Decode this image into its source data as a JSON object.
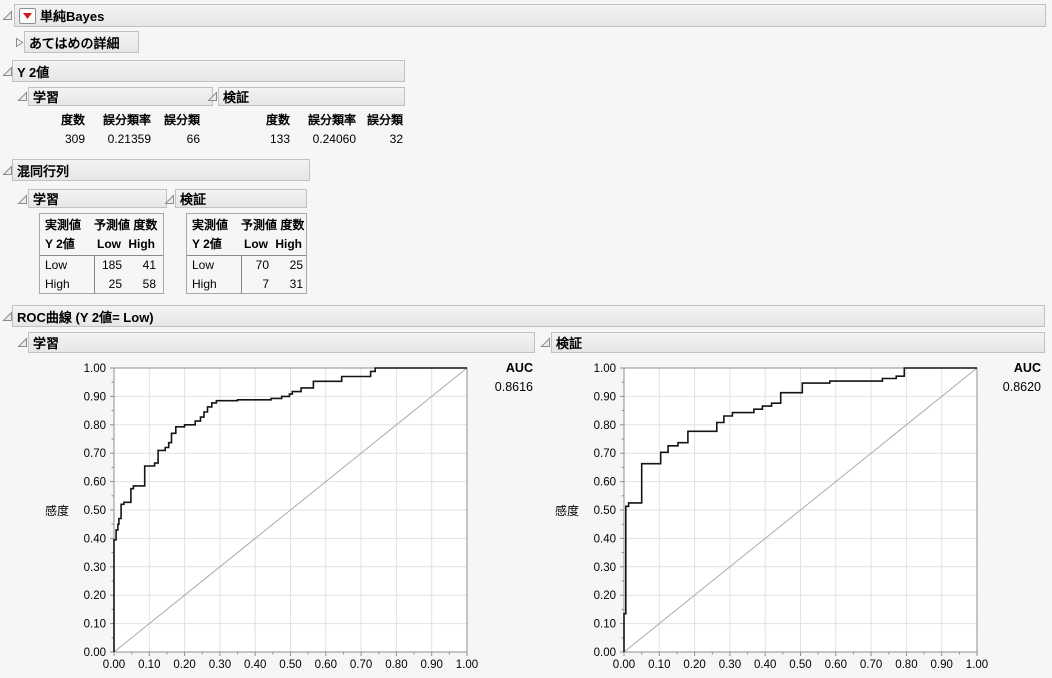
{
  "title": {
    "label": "単純Bayes"
  },
  "fit_details": {
    "label": "あてはめの詳細"
  },
  "y2": {
    "title": "Y 2値",
    "panels": [
      {
        "label": "学習",
        "columns": [
          "度数",
          "誤分類率",
          "誤分類"
        ],
        "values": [
          "309",
          "0.21359",
          "66"
        ]
      },
      {
        "label": "検証",
        "columns": [
          "度数",
          "誤分類率",
          "誤分類"
        ],
        "values": [
          "133",
          "0.24060",
          "32"
        ]
      }
    ]
  },
  "confusion": {
    "title": "混同行列",
    "panels": [
      {
        "label": "学習",
        "actual_header": "実測値",
        "predicted_header": "予測値 度数",
        "row_header": "Y 2値",
        "class_labels": [
          "Low",
          "High"
        ],
        "rows": [
          [
            "Low",
            "185",
            "41"
          ],
          [
            "High",
            "25",
            "58"
          ]
        ]
      },
      {
        "label": "検証",
        "actual_header": "実測値",
        "predicted_header": "予測値 度数",
        "row_header": "Y 2値",
        "class_labels": [
          "Low",
          "High"
        ],
        "rows": [
          [
            "Low",
            "70",
            "25"
          ],
          [
            "High",
            "7",
            "31"
          ]
        ]
      }
    ]
  },
  "roc": {
    "title": "ROC曲線 (Y 2値= Low)",
    "ylabel": "感度",
    "auc_label": "AUC",
    "panels": [
      {
        "label": "学習",
        "auc": "0.8616"
      },
      {
        "label": "検証",
        "auc": "0.8620"
      }
    ]
  },
  "chart_data": [
    {
      "type": "line",
      "title": "学習 ROC曲線 (Y 2値= Low)",
      "xlabel": "",
      "ylabel": "感度",
      "xlim": [
        0,
        1
      ],
      "ylim": [
        0,
        1
      ],
      "tick_step": 0.1,
      "grid": true,
      "diagonal": true,
      "auc": 0.8616,
      "curve": [
        [
          0,
          0
        ],
        [
          0,
          0.395
        ],
        [
          0.006,
          0.395
        ],
        [
          0.006,
          0.43
        ],
        [
          0.011,
          0.43
        ],
        [
          0.011,
          0.45
        ],
        [
          0.014,
          0.45
        ],
        [
          0.014,
          0.47
        ],
        [
          0.02,
          0.47
        ],
        [
          0.02,
          0.52
        ],
        [
          0.028,
          0.52
        ],
        [
          0.028,
          0.527
        ],
        [
          0.048,
          0.527
        ],
        [
          0.048,
          0.575
        ],
        [
          0.055,
          0.575
        ],
        [
          0.055,
          0.585
        ],
        [
          0.087,
          0.585
        ],
        [
          0.087,
          0.655
        ],
        [
          0.115,
          0.655
        ],
        [
          0.115,
          0.665
        ],
        [
          0.125,
          0.665
        ],
        [
          0.125,
          0.71
        ],
        [
          0.145,
          0.71
        ],
        [
          0.145,
          0.72
        ],
        [
          0.155,
          0.72
        ],
        [
          0.155,
          0.737
        ],
        [
          0.163,
          0.737
        ],
        [
          0.163,
          0.77
        ],
        [
          0.175,
          0.77
        ],
        [
          0.175,
          0.793
        ],
        [
          0.2,
          0.793
        ],
        [
          0.2,
          0.8
        ],
        [
          0.23,
          0.8
        ],
        [
          0.23,
          0.813
        ],
        [
          0.245,
          0.813
        ],
        [
          0.245,
          0.827
        ],
        [
          0.255,
          0.827
        ],
        [
          0.255,
          0.845
        ],
        [
          0.265,
          0.845
        ],
        [
          0.265,
          0.863
        ],
        [
          0.277,
          0.863
        ],
        [
          0.277,
          0.877
        ],
        [
          0.29,
          0.877
        ],
        [
          0.29,
          0.885
        ],
        [
          0.35,
          0.885
        ],
        [
          0.35,
          0.888
        ],
        [
          0.445,
          0.888
        ],
        [
          0.445,
          0.893
        ],
        [
          0.475,
          0.893
        ],
        [
          0.475,
          0.9
        ],
        [
          0.497,
          0.9
        ],
        [
          0.497,
          0.908
        ],
        [
          0.505,
          0.908
        ],
        [
          0.505,
          0.917
        ],
        [
          0.53,
          0.917
        ],
        [
          0.53,
          0.93
        ],
        [
          0.565,
          0.93
        ],
        [
          0.565,
          0.953
        ],
        [
          0.645,
          0.953
        ],
        [
          0.645,
          0.97
        ],
        [
          0.727,
          0.97
        ],
        [
          0.727,
          0.988
        ],
        [
          0.74,
          0.988
        ],
        [
          0.74,
          1
        ],
        [
          1,
          1
        ]
      ]
    },
    {
      "type": "line",
      "title": "検証 ROC曲線 (Y 2値= Low)",
      "xlabel": "",
      "ylabel": "感度",
      "xlim": [
        0,
        1
      ],
      "ylim": [
        0,
        1
      ],
      "tick_step": 0.1,
      "grid": true,
      "diagonal": true,
      "auc": 0.862,
      "curve": [
        [
          0,
          0
        ],
        [
          0,
          0.135
        ],
        [
          0.005,
          0.135
        ],
        [
          0.005,
          0.513
        ],
        [
          0.013,
          0.513
        ],
        [
          0.013,
          0.525
        ],
        [
          0.05,
          0.525
        ],
        [
          0.05,
          0.663
        ],
        [
          0.104,
          0.663
        ],
        [
          0.104,
          0.703
        ],
        [
          0.125,
          0.703
        ],
        [
          0.125,
          0.726
        ],
        [
          0.153,
          0.726
        ],
        [
          0.153,
          0.737
        ],
        [
          0.181,
          0.737
        ],
        [
          0.181,
          0.777
        ],
        [
          0.263,
          0.777
        ],
        [
          0.263,
          0.808
        ],
        [
          0.283,
          0.808
        ],
        [
          0.283,
          0.831
        ],
        [
          0.307,
          0.831
        ],
        [
          0.307,
          0.843
        ],
        [
          0.368,
          0.843
        ],
        [
          0.368,
          0.855
        ],
        [
          0.392,
          0.855
        ],
        [
          0.392,
          0.866
        ],
        [
          0.418,
          0.866
        ],
        [
          0.418,
          0.876
        ],
        [
          0.444,
          0.876
        ],
        [
          0.444,
          0.913
        ],
        [
          0.505,
          0.913
        ],
        [
          0.505,
          0.947
        ],
        [
          0.583,
          0.947
        ],
        [
          0.583,
          0.954
        ],
        [
          0.732,
          0.954
        ],
        [
          0.732,
          0.963
        ],
        [
          0.771,
          0.963
        ],
        [
          0.771,
          0.971
        ],
        [
          0.794,
          0.971
        ],
        [
          0.794,
          1
        ],
        [
          1,
          1
        ]
      ]
    }
  ],
  "colors": {
    "page_bg": "#f7f6f5",
    "header_bg": "#ebebeb",
    "header_border": "#c2c1c0",
    "grid": "#e2e2e2",
    "frame": "#8f8f8f",
    "diagonal": "#ababab",
    "curve": "#141414",
    "red_triangle": "#cf1d1d"
  }
}
